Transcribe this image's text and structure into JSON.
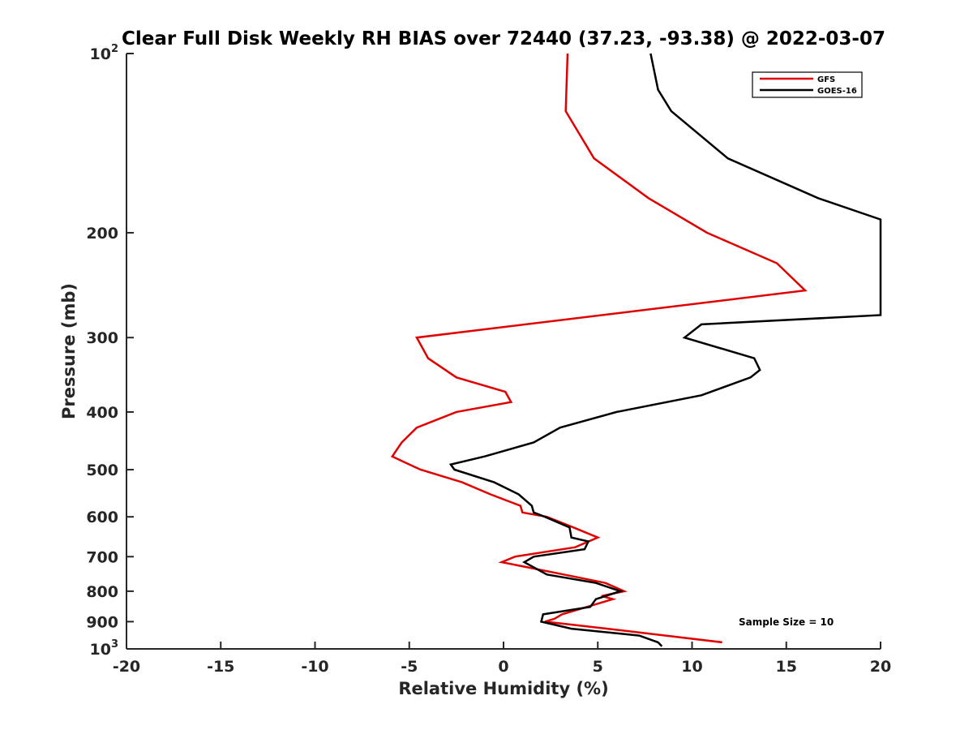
{
  "chart_data": {
    "type": "line",
    "title": "Clear Full Disk Weekly RH BIAS over 72440 (37.23, -93.38) @ 2022-03-07",
    "xlabel": "Relative Humidity (%)",
    "ylabel": "Pressure (mb)",
    "xlim": [
      -20,
      20
    ],
    "ylim": [
      100,
      1000
    ],
    "y_scale": "log",
    "y_reversed": true,
    "grid": false,
    "legend_position": "top-right",
    "x_ticks": [
      -20,
      -15,
      -10,
      -5,
      0,
      5,
      10,
      15,
      20
    ],
    "x_tick_labels": [
      "-20",
      "-15",
      "-10",
      "-5",
      "0",
      "5",
      "10",
      "15",
      "20"
    ],
    "y_ticks": [
      100,
      200,
      300,
      400,
      500,
      600,
      700,
      800,
      900,
      1000
    ],
    "y_tick_labels": [
      {
        "base": "10",
        "sup": "2"
      },
      {
        "base": "200"
      },
      {
        "base": "300"
      },
      {
        "base": "400"
      },
      {
        "base": "500"
      },
      {
        "base": "600"
      },
      {
        "base": "700"
      },
      {
        "base": "800"
      },
      {
        "base": "900"
      },
      {
        "base": "10",
        "sup": "3"
      }
    ],
    "annotation": "Sample Size = 10",
    "series": [
      {
        "name": "GFS",
        "color": "#e00000",
        "points": [
          [
            3.4,
            100
          ],
          [
            3.3,
            125
          ],
          [
            4.8,
            150
          ],
          [
            7.7,
            175
          ],
          [
            10.8,
            200
          ],
          [
            14.5,
            225
          ],
          [
            16.0,
            250
          ],
          [
            -4.6,
            300
          ],
          [
            -4.0,
            325
          ],
          [
            -2.5,
            350
          ],
          [
            0.1,
            370
          ],
          [
            0.4,
            385
          ],
          [
            -2.5,
            400
          ],
          [
            -4.6,
            425
          ],
          [
            -5.4,
            450
          ],
          [
            -5.9,
            475
          ],
          [
            -5.0,
            490
          ],
          [
            -4.4,
            500
          ],
          [
            -2.2,
            525
          ],
          [
            -0.7,
            550
          ],
          [
            0.9,
            575
          ],
          [
            1.0,
            590
          ],
          [
            2.3,
            600
          ],
          [
            3.7,
            625
          ],
          [
            5.0,
            650
          ],
          [
            3.8,
            675
          ],
          [
            0.6,
            700
          ],
          [
            -0.1,
            715
          ],
          [
            3.2,
            750
          ],
          [
            5.4,
            775
          ],
          [
            6.4,
            800
          ],
          [
            5.2,
            815
          ],
          [
            5.8,
            825
          ],
          [
            3.1,
            875
          ],
          [
            2.7,
            890
          ],
          [
            2.2,
            900
          ],
          [
            5.5,
            925
          ],
          [
            8.6,
            950
          ],
          [
            11.6,
            975
          ]
        ]
      },
      {
        "name": "GOES-16",
        "color": "#000000",
        "points": [
          [
            7.8,
            100
          ],
          [
            8.2,
            115
          ],
          [
            8.9,
            125
          ],
          [
            11.9,
            150
          ],
          [
            16.7,
            175
          ],
          [
            20.0,
            190
          ],
          [
            20.0,
            275
          ],
          [
            10.5,
            285
          ],
          [
            9.6,
            300
          ],
          [
            13.3,
            325
          ],
          [
            13.6,
            340
          ],
          [
            13.1,
            350
          ],
          [
            10.5,
            375
          ],
          [
            6.0,
            400
          ],
          [
            3.0,
            425
          ],
          [
            1.6,
            450
          ],
          [
            -1.0,
            475
          ],
          [
            -2.8,
            490
          ],
          [
            -2.6,
            500
          ],
          [
            -0.5,
            525
          ],
          [
            0.8,
            550
          ],
          [
            1.5,
            575
          ],
          [
            1.6,
            590
          ],
          [
            2.2,
            600
          ],
          [
            3.5,
            625
          ],
          [
            3.6,
            650
          ],
          [
            4.5,
            660
          ],
          [
            4.3,
            680
          ],
          [
            1.6,
            700
          ],
          [
            1.1,
            715
          ],
          [
            2.3,
            750
          ],
          [
            4.9,
            775
          ],
          [
            6.2,
            800
          ],
          [
            4.9,
            825
          ],
          [
            4.6,
            850
          ],
          [
            2.1,
            875
          ],
          [
            2.0,
            900
          ],
          [
            3.6,
            925
          ],
          [
            7.2,
            950
          ],
          [
            8.2,
            975
          ],
          [
            8.4,
            990
          ]
        ]
      }
    ]
  }
}
